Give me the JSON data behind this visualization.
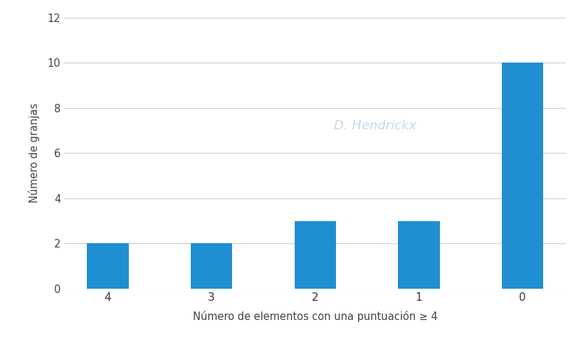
{
  "categories": [
    "4",
    "3",
    "2",
    "1",
    "0"
  ],
  "values": [
    2,
    2,
    3,
    3,
    10
  ],
  "bar_color": "#1f8fd1",
  "xlabel": "Número de elementos con una puntuación ≥ 4",
  "ylabel": "Número de granjas",
  "ylim": [
    0,
    12
  ],
  "yticks": [
    0,
    2,
    4,
    6,
    8,
    10,
    12
  ],
  "background_color": "#ffffff",
  "watermark_text": "D. Hendrickx",
  "bar_width": 0.4
}
